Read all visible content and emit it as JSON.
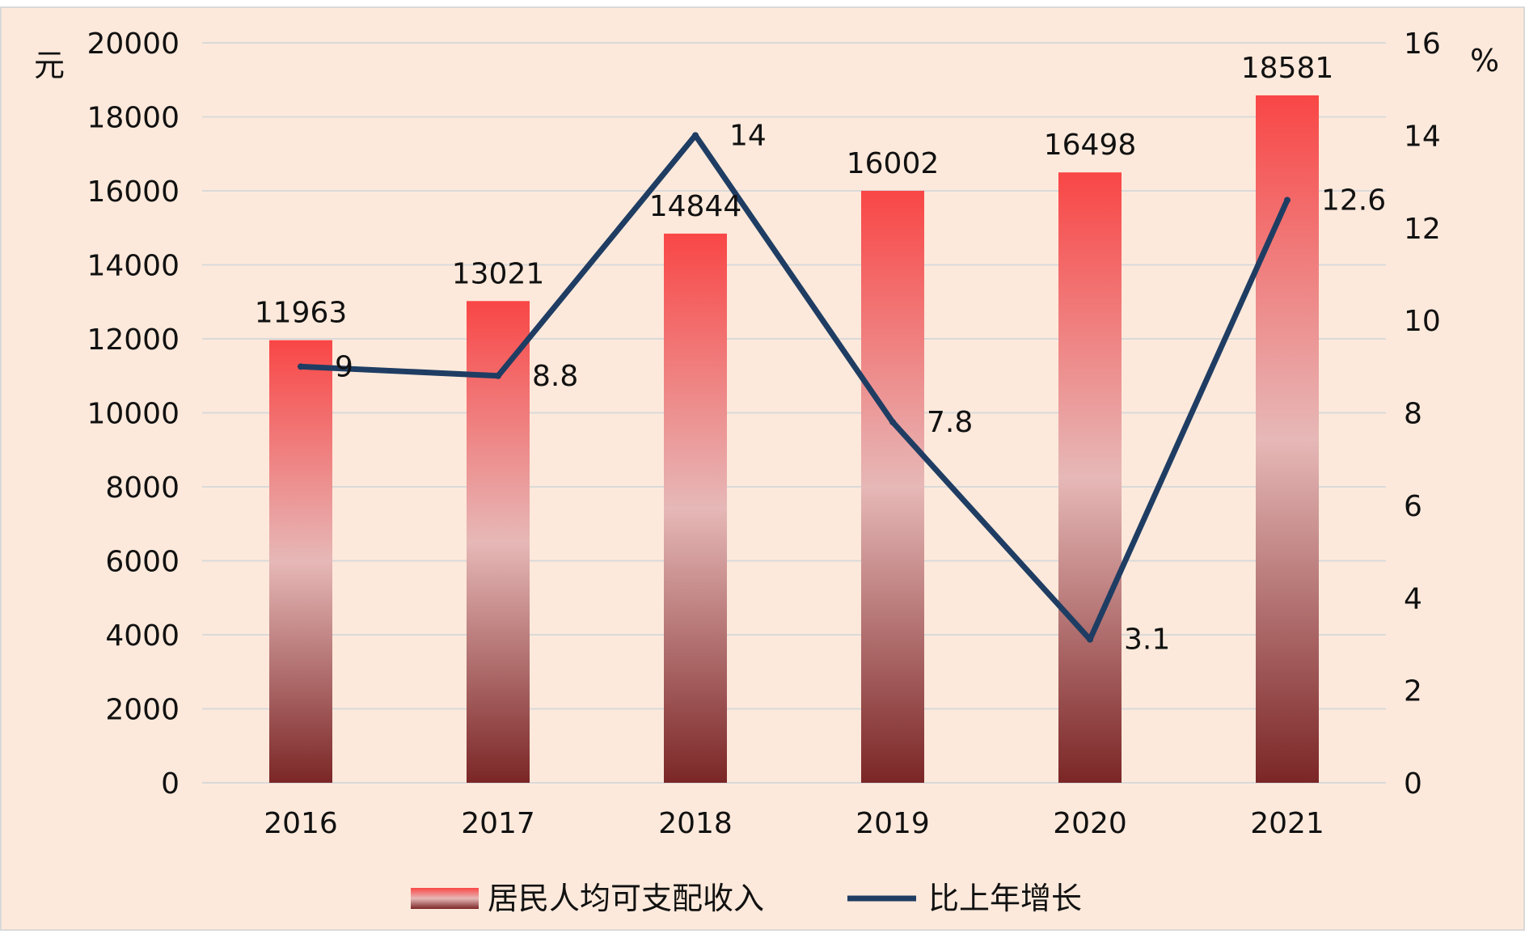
{
  "chart_data": {
    "type": "bar",
    "categories": [
      "2016",
      "2017",
      "2018",
      "2019",
      "2020",
      "2021"
    ],
    "series": [
      {
        "name": "居民人均可支配收入",
        "type": "bar",
        "axis": "left",
        "values": [
          11963,
          13021,
          14844,
          16002,
          16498,
          18581
        ],
        "labels": [
          "11963",
          "13021",
          "14844",
          "16002",
          "16498",
          "18581"
        ]
      },
      {
        "name": "比上年增长",
        "type": "line",
        "axis": "right",
        "values": [
          9,
          8.8,
          14,
          7.8,
          3.1,
          12.6
        ],
        "labels": [
          "9",
          "8.8",
          "14",
          "7.8",
          "3.1",
          "12.6"
        ]
      }
    ],
    "y_left": {
      "unit": "元",
      "ylim": [
        0,
        20000
      ],
      "ticks": [
        "0",
        "2000",
        "4000",
        "6000",
        "8000",
        "10000",
        "12000",
        "14000",
        "16000",
        "18000",
        "20000"
      ]
    },
    "y_right": {
      "unit": "%",
      "ylim": [
        0,
        16
      ],
      "ticks": [
        "0",
        "2",
        "4",
        "6",
        "8",
        "10",
        "12",
        "14",
        "16"
      ]
    },
    "grid": true,
    "legend_position": "bottom"
  },
  "colors": {
    "background": "#fde9db",
    "border": "#d9d9d9",
    "grid": "#d9d9d9",
    "bar_top": "#f94646",
    "bar_mid": "#e6b8b7",
    "bar_bottom": "#7b2626",
    "line": "#1f3d63"
  }
}
